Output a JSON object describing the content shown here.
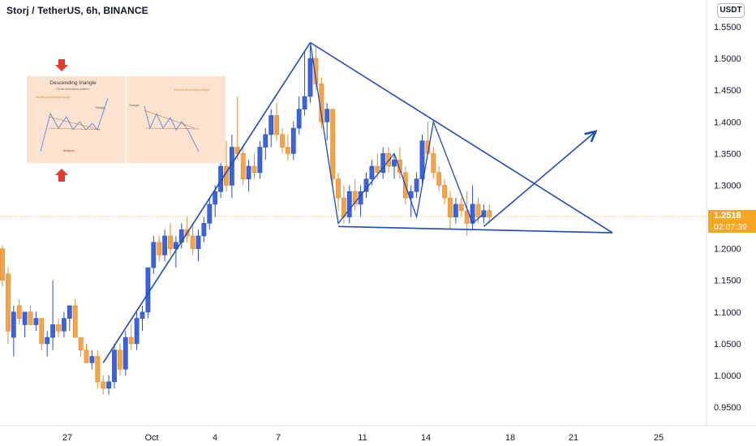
{
  "header": {
    "title": "Storj / TetherUS, 6h, BINANCE",
    "currency": "USDT"
  },
  "last_price": {
    "value": "1.2518",
    "countdown": "02:07:39"
  },
  "colors": {
    "up": "#3d63d6",
    "down": "#f7a34b",
    "pattern": "#1f4bb5",
    "last_price": "#f5a623"
  },
  "inset": {
    "title": "Descending triangle",
    "subtitle": "Chart formation pattern",
    "left_note": "Bullish descending triangle",
    "right_note": "Bearish descending triangle",
    "triangle_label": "Triangle",
    "breakout_label": "Breakout"
  },
  "chart_data": {
    "type": "candlestick",
    "y_axis": {
      "range": [
        0.91,
        1.57
      ],
      "ticks": [
        "1.5500",
        "1.5000",
        "1.4500",
        "1.4000",
        "1.3500",
        "1.3000",
        "1.2500",
        "1.2000",
        "1.1500",
        "1.1000",
        "1.0500",
        "1.0000",
        "0.9500"
      ],
      "side": "right"
    },
    "x_axis": {
      "ticks": [
        "27",
        "Oct",
        "4",
        "7",
        "11",
        "14",
        "18",
        "21",
        "25"
      ]
    },
    "candles": [
      [
        1.2,
        1.205,
        1.14,
        1.15
      ],
      [
        1.16,
        1.17,
        1.05,
        1.07
      ],
      [
        1.06,
        1.11,
        1.03,
        1.1
      ],
      [
        1.11,
        1.12,
        1.08,
        1.09
      ],
      [
        1.08,
        1.1,
        1.06,
        1.1
      ],
      [
        1.1,
        1.11,
        1.08,
        1.08
      ],
      [
        1.08,
        1.1,
        1.07,
        1.09
      ],
      [
        1.09,
        1.09,
        1.04,
        1.05
      ],
      [
        1.05,
        1.07,
        1.03,
        1.06
      ],
      [
        1.06,
        1.15,
        1.04,
        1.08
      ],
      [
        1.08,
        1.09,
        1.06,
        1.07
      ],
      [
        1.07,
        1.1,
        1.06,
        1.09
      ],
      [
        1.09,
        1.11,
        1.07,
        1.11
      ],
      [
        1.11,
        1.12,
        1.06,
        1.06
      ],
      [
        1.06,
        1.06,
        1.03,
        1.04
      ],
      [
        1.04,
        1.05,
        1.02,
        1.02
      ],
      [
        1.02,
        1.04,
        1.01,
        1.03
      ],
      [
        1.03,
        1.04,
        0.98,
        0.99
      ],
      [
        0.99,
        1.0,
        0.97,
        0.98
      ],
      [
        0.98,
        1.0,
        0.97,
        0.99
      ],
      [
        0.99,
        1.05,
        0.98,
        1.04
      ],
      [
        1.04,
        1.05,
        1.0,
        1.01
      ],
      [
        1.01,
        1.07,
        1.0,
        1.06
      ],
      [
        1.06,
        1.08,
        1.04,
        1.05
      ],
      [
        1.05,
        1.1,
        1.04,
        1.09
      ],
      [
        1.09,
        1.11,
        1.07,
        1.1
      ],
      [
        1.1,
        1.17,
        1.09,
        1.17
      ],
      [
        1.17,
        1.22,
        1.16,
        1.21
      ],
      [
        1.21,
        1.22,
        1.18,
        1.19
      ],
      [
        1.19,
        1.23,
        1.18,
        1.22
      ],
      [
        1.22,
        1.24,
        1.19,
        1.2
      ],
      [
        1.2,
        1.22,
        1.17,
        1.21
      ],
      [
        1.21,
        1.24,
        1.2,
        1.23
      ],
      [
        1.23,
        1.25,
        1.21,
        1.22
      ],
      [
        1.22,
        1.24,
        1.19,
        1.2
      ],
      [
        1.2,
        1.23,
        1.18,
        1.22
      ],
      [
        1.22,
        1.25,
        1.21,
        1.24
      ],
      [
        1.24,
        1.28,
        1.23,
        1.27
      ],
      [
        1.27,
        1.3,
        1.25,
        1.29
      ],
      [
        1.29,
        1.34,
        1.28,
        1.33
      ],
      [
        1.33,
        1.37,
        1.29,
        1.3
      ],
      [
        1.3,
        1.38,
        1.28,
        1.36
      ],
      [
        1.36,
        1.44,
        1.34,
        1.35
      ],
      [
        1.35,
        1.36,
        1.3,
        1.31
      ],
      [
        1.31,
        1.34,
        1.29,
        1.33
      ],
      [
        1.33,
        1.35,
        1.31,
        1.32
      ],
      [
        1.32,
        1.37,
        1.31,
        1.36
      ],
      [
        1.36,
        1.39,
        1.34,
        1.38
      ],
      [
        1.38,
        1.42,
        1.36,
        1.41
      ],
      [
        1.41,
        1.43,
        1.37,
        1.38
      ],
      [
        1.38,
        1.39,
        1.35,
        1.36
      ],
      [
        1.36,
        1.38,
        1.34,
        1.35
      ],
      [
        1.35,
        1.4,
        1.34,
        1.39
      ],
      [
        1.39,
        1.44,
        1.38,
        1.42
      ],
      [
        1.42,
        1.51,
        1.41,
        1.44
      ],
      [
        1.44,
        1.52,
        1.43,
        1.5
      ],
      [
        1.5,
        1.52,
        1.45,
        1.46
      ],
      [
        1.46,
        1.47,
        1.39,
        1.4
      ],
      [
        1.4,
        1.43,
        1.37,
        1.42
      ],
      [
        1.42,
        1.42,
        1.3,
        1.31
      ],
      [
        1.31,
        1.32,
        1.26,
        1.28
      ],
      [
        1.28,
        1.3,
        1.24,
        1.25
      ],
      [
        1.25,
        1.3,
        1.24,
        1.29
      ],
      [
        1.29,
        1.31,
        1.26,
        1.27
      ],
      [
        1.27,
        1.3,
        1.25,
        1.29
      ],
      [
        1.29,
        1.32,
        1.28,
        1.31
      ],
      [
        1.31,
        1.34,
        1.3,
        1.33
      ],
      [
        1.33,
        1.35,
        1.31,
        1.32
      ],
      [
        1.32,
        1.36,
        1.31,
        1.35
      ],
      [
        1.35,
        1.36,
        1.32,
        1.33
      ],
      [
        1.33,
        1.35,
        1.31,
        1.34
      ],
      [
        1.34,
        1.36,
        1.31,
        1.32
      ],
      [
        1.32,
        1.33,
        1.27,
        1.28
      ],
      [
        1.28,
        1.3,
        1.25,
        1.29
      ],
      [
        1.29,
        1.32,
        1.28,
        1.31
      ],
      [
        1.31,
        1.38,
        1.3,
        1.37
      ],
      [
        1.37,
        1.4,
        1.35,
        1.35
      ],
      [
        1.35,
        1.36,
        1.31,
        1.32
      ],
      [
        1.32,
        1.33,
        1.29,
        1.3
      ],
      [
        1.3,
        1.31,
        1.27,
        1.28
      ],
      [
        1.28,
        1.29,
        1.23,
        1.25
      ],
      [
        1.25,
        1.28,
        1.24,
        1.27
      ],
      [
        1.27,
        1.28,
        1.25,
        1.26
      ],
      [
        1.26,
        1.29,
        1.22,
        1.24
      ],
      [
        1.24,
        1.3,
        1.23,
        1.27
      ],
      [
        1.27,
        1.28,
        1.24,
        1.25
      ],
      [
        1.25,
        1.27,
        1.24,
        1.26
      ],
      [
        1.26,
        1.27,
        1.24,
        1.25
      ]
    ],
    "annotations": [
      {
        "type": "line",
        "label": "uptrend",
        "points": [
          [
            18,
            1.02
          ],
          [
            55,
            1.525
          ]
        ]
      },
      {
        "type": "polyline",
        "label": "swing",
        "points": [
          [
            55,
            1.525
          ],
          [
            60,
            1.24
          ],
          [
            70,
            1.35
          ],
          [
            74,
            1.25
          ],
          [
            77,
            1.4
          ],
          [
            84,
            1.24
          ],
          [
            86,
            1.255
          ]
        ]
      },
      {
        "type": "line",
        "label": "descending resistance",
        "points": [
          [
            55,
            1.525
          ],
          [
            109,
            1.225
          ]
        ]
      },
      {
        "type": "line",
        "label": "flat support",
        "points": [
          [
            60,
            1.235
          ],
          [
            109,
            1.225
          ]
        ]
      },
      {
        "type": "arrow",
        "label": "projection",
        "points": [
          [
            86,
            1.235
          ],
          [
            106,
            1.385
          ]
        ]
      }
    ]
  }
}
